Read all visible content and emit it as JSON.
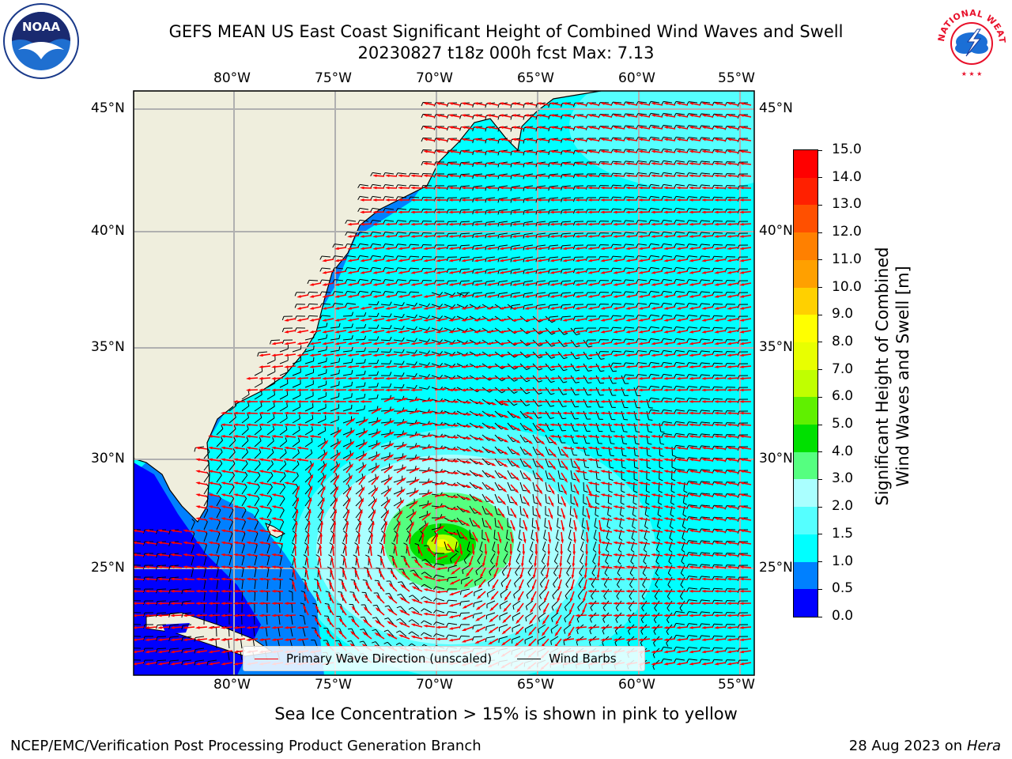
{
  "title": {
    "line1": "GEFS MEAN US East Coast Significant Height of Combined Wind Waves and Swell",
    "line2": "20230827 t18z 000h fcst   Max: 7.13"
  },
  "logos": {
    "left": {
      "text": "NOAA",
      "icon": "noaa-logo-icon"
    },
    "right": {
      "text": "NATIONAL WEATHER SERVICE",
      "icon": "nws-logo-icon"
    }
  },
  "axes": {
    "lon_ticks": [
      "80°W",
      "75°W",
      "70°W",
      "65°W",
      "60°W",
      "55°W"
    ],
    "lat_ticks": [
      "45°N",
      "40°N",
      "35°N",
      "30°N",
      "25°N"
    ],
    "lon_range": [
      -85,
      -54.5
    ],
    "lat_range": [
      20.5,
      46
    ],
    "grid": true
  },
  "colorbar": {
    "label_line1": "Significant Height of Combined",
    "label_line2": "Wind Waves and Swell [m]",
    "ticks": [
      "0.0",
      "0.5",
      "1.0",
      "1.5",
      "2.0",
      "3.0",
      "4.0",
      "5.0",
      "6.0",
      "7.0",
      "8.0",
      "9.0",
      "10.0",
      "11.0",
      "12.0",
      "13.0",
      "14.0",
      "15.0"
    ],
    "colors": [
      "#0000ff",
      "#0080ff",
      "#00ffff",
      "#55ffff",
      "#aaffff",
      "#55ff80",
      "#00e000",
      "#60f000",
      "#c0ff00",
      "#e8ff00",
      "#ffff00",
      "#ffd000",
      "#ffa000",
      "#ff8000",
      "#ff5000",
      "#ff2000",
      "#ff0000"
    ]
  },
  "legend": {
    "wave_label": "Primary Wave Direction (unscaled)",
    "barb_label": "Wind Barbs",
    "wave_color": "#ff0000",
    "barb_color": "#000000"
  },
  "sea_ice_note": "Sea Ice Concentration > 15% is shown in pink to yellow",
  "footer": {
    "left": "NCEP/EMC/Verification Post Processing Product Generation Branch",
    "date": "28 Aug 2023 on",
    "machine": "Hera"
  },
  "colors": {
    "land": "#efeedd",
    "ocean_base": "#00ffff",
    "grid": "#b0b0b0"
  }
}
